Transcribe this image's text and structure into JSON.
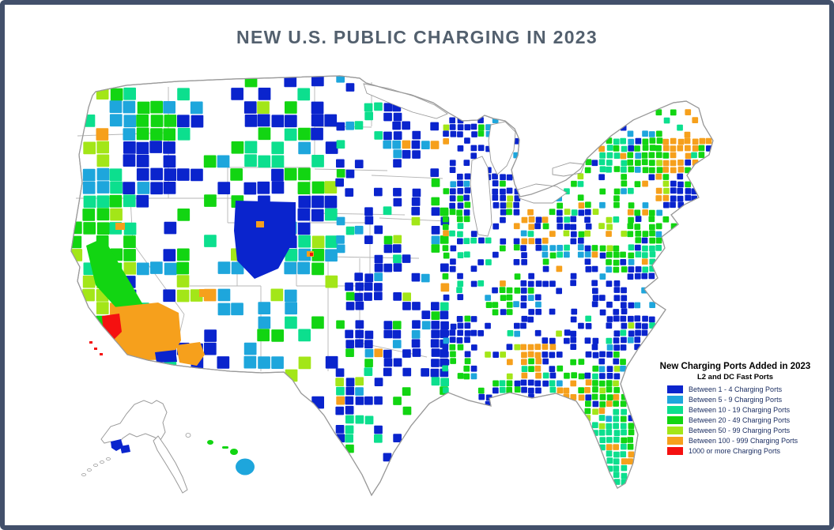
{
  "window": {
    "border_color": "#42506b",
    "background": "#ffffff"
  },
  "header": {
    "title": "NEW U.S. PUBLIC CHARGING IN 2023",
    "title_color": "#53606e"
  },
  "map": {
    "type": "choropleth",
    "description": "U.S. county-level map of new public EV charging ports added in 2023, with Alaska and Hawaii insets",
    "land_color": "#ffffff",
    "state_border_color": "#b5b5b5",
    "coast_border_color": "#9a9a9a"
  },
  "legend": {
    "title": "New Charging Ports Added in 2023",
    "subtitle": "L2 and DC Fast Ports",
    "text_color": "#1c2f63",
    "items": [
      {
        "label": "Between 1 - 4 Charging Ports",
        "color": "#0a24cd"
      },
      {
        "label": "Between 5 - 9 Charging Ports",
        "color": "#1ea6dc"
      },
      {
        "label": "Between 10 - 19 Charging Ports",
        "color": "#0cdf8e"
      },
      {
        "label": "Between 20 - 49 Charging Ports",
        "color": "#12d512"
      },
      {
        "label": "Between 50 - 99 Charging Ports",
        "color": "#a3e618"
      },
      {
        "label": "Between 100 - 999 Charging Ports",
        "color": "#f6a01c"
      },
      {
        "label": "1000 or more Charging Ports",
        "color": "#f51010"
      }
    ]
  }
}
